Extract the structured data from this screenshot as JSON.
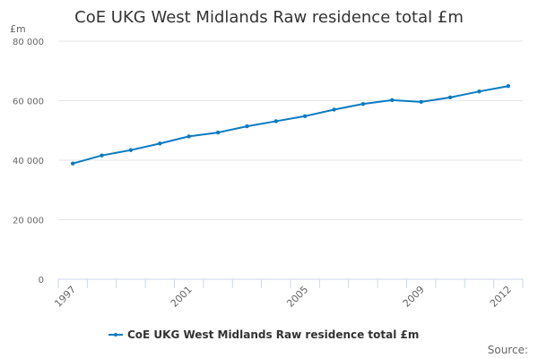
{
  "chart_data": {
    "type": "line",
    "title": "CoE UKG West Midlands Raw residence total £m",
    "ylabel": "£m",
    "xlabel": "",
    "ylim": [
      0,
      80000
    ],
    "yticks": [
      "0",
      "20 000",
      "40 000",
      "60 000",
      "80 000"
    ],
    "ytick_values": [
      0,
      20000,
      40000,
      60000,
      80000
    ],
    "x": [
      1997,
      1998,
      1999,
      2000,
      2001,
      2002,
      2003,
      2004,
      2005,
      2006,
      2007,
      2008,
      2009,
      2010,
      2011,
      2012
    ],
    "xtick_labels": [
      "1997",
      "2001",
      "2005",
      "2009",
      "2012"
    ],
    "grid": true,
    "legend_position": "bottom",
    "series": [
      {
        "name": "CoE UKG West Midlands Raw residence total £m",
        "color": "#0a7bc1",
        "values": [
          38900,
          41600,
          43400,
          45600,
          48000,
          49300,
          51400,
          53100,
          54800,
          57000,
          58900,
          60200,
          59600,
          61100,
          63100,
          64900
        ]
      }
    ]
  },
  "source_label": "Source:"
}
